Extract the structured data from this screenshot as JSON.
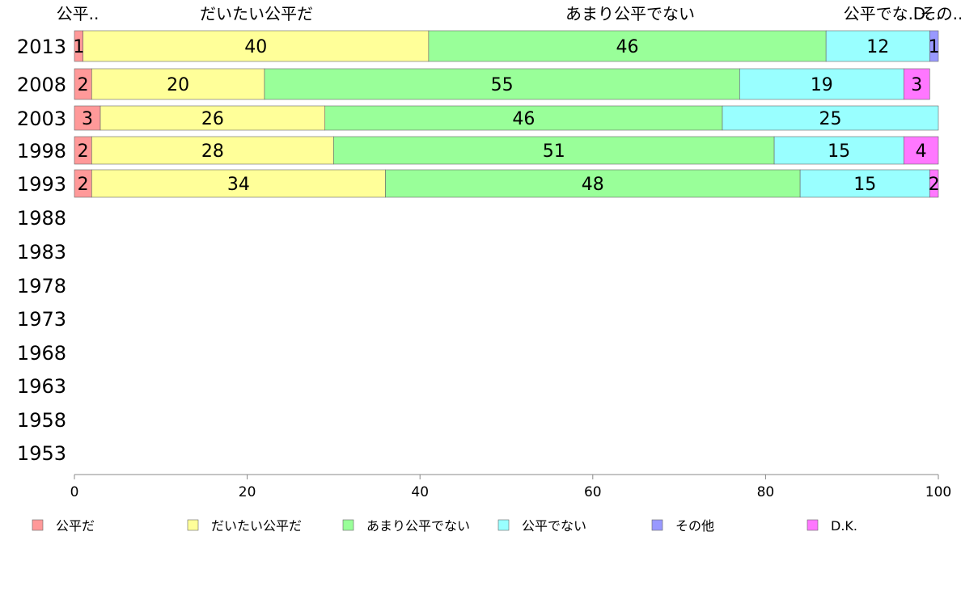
{
  "chart_data": {
    "type": "bar",
    "orientation": "horizontal",
    "stacked": true,
    "categories": [
      "2013",
      "2008",
      "2003",
      "1998",
      "1993",
      "1988",
      "1983",
      "1978",
      "1973",
      "1968",
      "1963",
      "1958",
      "1953"
    ],
    "series": [
      {
        "name": "公平だ",
        "color": "#ff9999",
        "values": [
          1,
          2,
          3,
          2,
          2,
          null,
          null,
          null,
          null,
          null,
          null,
          null,
          null
        ],
        "labels": [
          "1",
          "2",
          "3",
          "2",
          "2",
          "",
          "",
          "",
          "",
          "",
          "",
          "",
          ""
        ]
      },
      {
        "name": "だいたい公平だ",
        "color": "#ffff99",
        "values": [
          40,
          20,
          26,
          28,
          34,
          null,
          null,
          null,
          null,
          null,
          null,
          null,
          null
        ],
        "labels": [
          "40",
          "20",
          "26",
          "28",
          "34",
          "",
          "",
          "",
          "",
          "",
          "",
          "",
          ""
        ]
      },
      {
        "name": "あまり公平でない",
        "color": "#99ff99",
        "values": [
          46,
          55,
          46,
          51,
          48,
          null,
          null,
          null,
          null,
          null,
          null,
          null,
          null
        ],
        "labels": [
          "46",
          "55",
          "46",
          "51",
          "48",
          "",
          "",
          "",
          "",
          "",
          "",
          "",
          ""
        ]
      },
      {
        "name": "公平でない",
        "color": "#99ffff",
        "values": [
          12,
          19,
          25,
          15,
          15,
          null,
          null,
          null,
          null,
          null,
          null,
          null,
          null
        ],
        "labels": [
          "12",
          "19",
          "25",
          "15",
          "15",
          "",
          "",
          "",
          "",
          "",
          "",
          "",
          ""
        ]
      },
      {
        "name": "その他",
        "color": "#9999ff",
        "values": [
          1,
          0,
          0,
          0,
          0,
          null,
          null,
          null,
          null,
          null,
          null,
          null,
          null
        ],
        "labels": [
          "1",
          "",
          "",
          "",
          "",
          "",
          "",
          "",
          "",
          "",
          "",
          "",
          ""
        ]
      },
      {
        "name": "D.K.",
        "color": "#ff77ff",
        "values": [
          0,
          3,
          0,
          4,
          2,
          null,
          null,
          null,
          null,
          null,
          null,
          null,
          null
        ],
        "labels": [
          "",
          "3",
          "",
          "4",
          "2",
          "",
          "",
          "",
          "",
          "",
          "",
          "",
          ""
        ]
      }
    ],
    "top_labels": [
      "公平..",
      "だいたい公平だ",
      "あまり公平でない",
      "公平でな..",
      "その..",
      "D..."
    ],
    "x_ticks": [
      "0",
      "20",
      "40",
      "60",
      "80",
      "100"
    ],
    "xlim": [
      0,
      100
    ],
    "grid": false,
    "legend_position": "bottom"
  }
}
